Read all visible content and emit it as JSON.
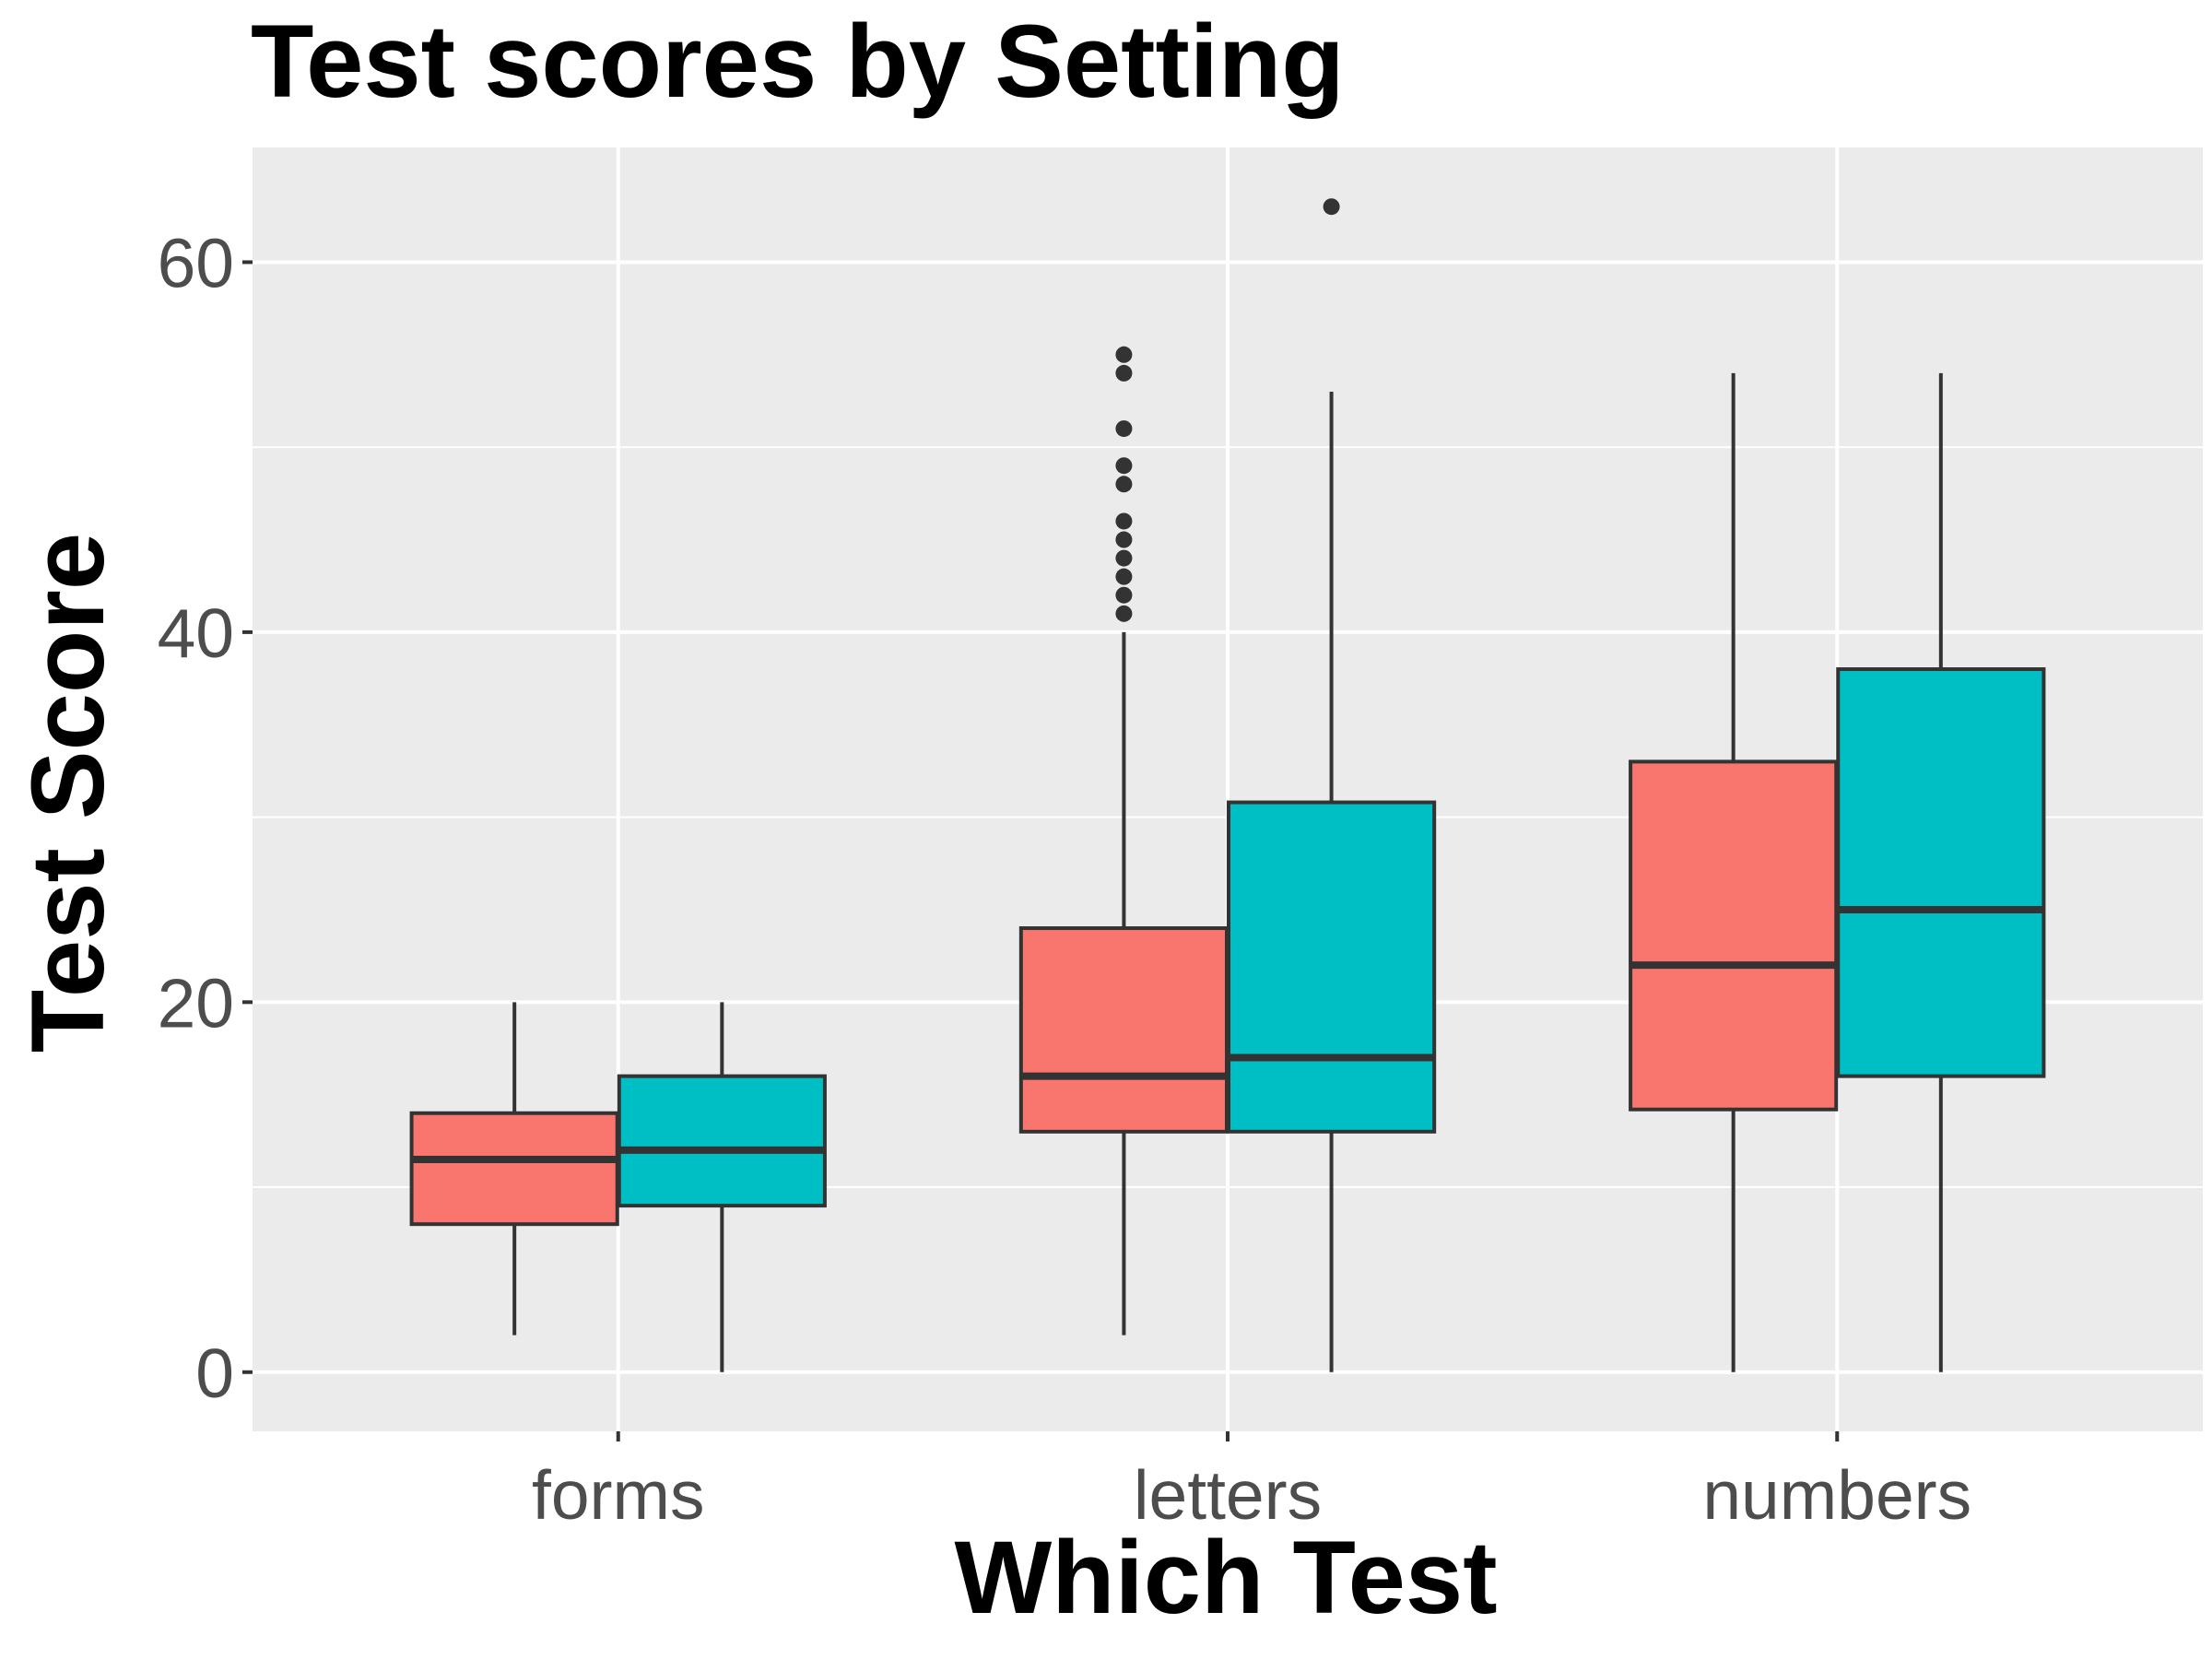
{
  "chart_data": {
    "type": "box",
    "title": "Test scores by Setting",
    "xlabel": "Which Test",
    "ylabel": "Test Score",
    "categories": [
      "forms",
      "letters",
      "numbers"
    ],
    "ylim": [
      -3.2,
      66.2
    ],
    "yticks": [
      0,
      20,
      40,
      60
    ],
    "y_minor_ticks": [
      10,
      30,
      50
    ],
    "grid": true,
    "legend": "none",
    "colors": {
      "panel_bg": "#ebebeb",
      "grid": "#ffffff",
      "box_outline": "#333333",
      "outlier": "#333333"
    },
    "series": [
      {
        "color": "#f8766d",
        "boxes": [
          {
            "category": "forms",
            "whisker_low": 2,
            "q1": 8,
            "median": 11.5,
            "q3": 14,
            "whisker_high": 20,
            "outliers": []
          },
          {
            "category": "letters",
            "whisker_low": 2,
            "q1": 13,
            "median": 16,
            "q3": 24,
            "whisker_high": 40,
            "outliers": [
              41,
              42,
              43,
              44,
              45,
              46,
              48,
              49,
              51,
              54,
              55
            ]
          },
          {
            "category": "numbers",
            "whisker_low": 0,
            "q1": 14.2,
            "median": 22,
            "q3": 33,
            "whisker_high": 54,
            "outliers": []
          }
        ]
      },
      {
        "color": "#00bfc4",
        "boxes": [
          {
            "category": "forms",
            "whisker_low": 0,
            "q1": 9,
            "median": 12,
            "q3": 16,
            "whisker_high": 20,
            "outliers": []
          },
          {
            "category": "letters",
            "whisker_low": 0,
            "q1": 13,
            "median": 17,
            "q3": 30.8,
            "whisker_high": 53,
            "outliers": [
              63
            ]
          },
          {
            "category": "numbers",
            "whisker_low": 0,
            "q1": 16,
            "median": 25,
            "q3": 38,
            "whisker_high": 54,
            "outliers": []
          }
        ]
      }
    ]
  }
}
